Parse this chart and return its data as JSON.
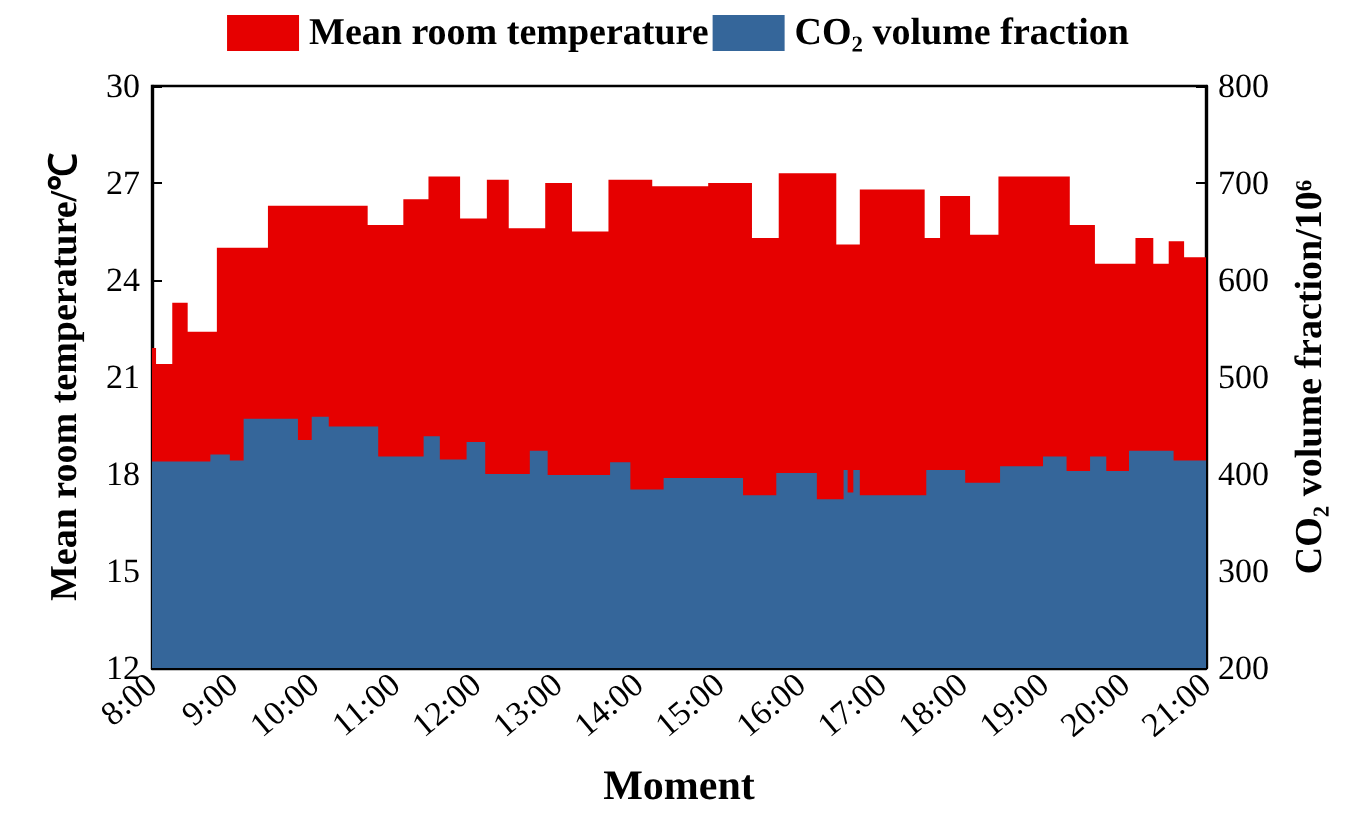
{
  "chart_data": {
    "type": "area",
    "xlabel": "Moment",
    "ylabel": "Mean room temperature/℃",
    "y2label": "CO₂ volume fraction/10⁶",
    "xlim": [
      8,
      21
    ],
    "xticks": [
      {
        "value": 8,
        "label": "8:00"
      },
      {
        "value": 9,
        "label": "9:00"
      },
      {
        "value": 10,
        "label": "10:00"
      },
      {
        "value": 11,
        "label": "11:00"
      },
      {
        "value": 12,
        "label": "12:00"
      },
      {
        "value": 13,
        "label": "13:00"
      },
      {
        "value": 14,
        "label": "14:00"
      },
      {
        "value": 15,
        "label": "15:00"
      },
      {
        "value": 16,
        "label": "16:00"
      },
      {
        "value": 17,
        "label": "17:00"
      },
      {
        "value": 18,
        "label": "18:00"
      },
      {
        "value": 19,
        "label": "19:00"
      },
      {
        "value": 20,
        "label": "20:00"
      },
      {
        "value": 21,
        "label": "21:00"
      }
    ],
    "ylim": [
      12,
      30
    ],
    "yticks": [
      12,
      15,
      18,
      21,
      24,
      27,
      30
    ],
    "y2lim": [
      200,
      800
    ],
    "y2ticks": [
      200,
      300,
      400,
      500,
      600,
      700,
      800
    ],
    "legend": "top",
    "grid": false,
    "series": [
      {
        "name": "Mean room temperature",
        "color": "#e60000",
        "x": [
          8.0,
          8.05,
          8.25,
          8.44,
          8.8,
          9.43,
          10.66,
          11.1,
          11.41,
          11.8,
          12.13,
          12.4,
          12.85,
          13.18,
          13.63,
          14.17,
          14.86,
          15.4,
          15.73,
          16.44,
          16.73,
          17.53,
          17.72,
          18.09,
          18.44,
          19.32,
          19.63,
          20.13,
          20.35,
          20.54,
          20.73,
          21.0
        ],
        "values": [
          21.9,
          21.4,
          23.3,
          22.4,
          25.0,
          26.3,
          25.7,
          26.5,
          27.2,
          25.9,
          27.1,
          25.6,
          27.0,
          25.5,
          27.1,
          26.9,
          27.0,
          25.3,
          27.3,
          25.1,
          26.8,
          25.3,
          26.6,
          25.4,
          27.2,
          25.7,
          24.5,
          25.3,
          24.5,
          25.2,
          24.7,
          24.7
        ]
      },
      {
        "name": "CO₂ volume fraction",
        "color": "#35669a",
        "axis": "y2",
        "x": [
          8.0,
          8.72,
          8.96,
          9.13,
          9.8,
          9.97,
          10.18,
          10.79,
          11.35,
          11.55,
          11.88,
          12.11,
          12.66,
          12.88,
          13.65,
          13.9,
          14.31,
          15.29,
          15.7,
          16.2,
          16.53,
          16.58,
          16.65,
          16.73,
          17.55,
          18.03,
          18.46,
          18.99,
          19.28,
          19.57,
          19.77,
          20.05,
          20.6,
          21.0
        ],
        "values": [
          413,
          420,
          414,
          457,
          435,
          459,
          449,
          418,
          439,
          415,
          433,
          400,
          424,
          399,
          412,
          384,
          396,
          378,
          401,
          374,
          404,
          381,
          404,
          378,
          404,
          391,
          408,
          418,
          403,
          418,
          403,
          424,
          414,
          414
        ]
      }
    ]
  }
}
